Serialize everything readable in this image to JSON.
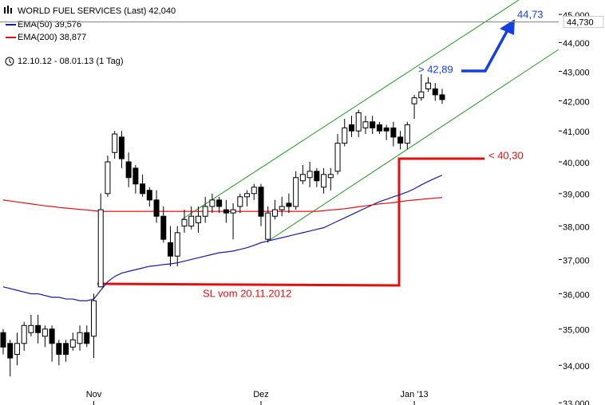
{
  "chart_data": {
    "type": "candlestick",
    "legend": [
      "WORLD FUEL SERVICES (Last) 42,040",
      "EMA(50) 39,576",
      "EMA(200) 38,877"
    ],
    "period": "12.10.12 - 08.01.13 (1 Tag)",
    "categories": [
      null,
      null,
      null,
      null,
      null,
      null,
      null,
      null,
      null,
      null,
      null,
      null,
      null,
      "Nov",
      null,
      null,
      null,
      null,
      null,
      null,
      null,
      null,
      null,
      null,
      null,
      null,
      null,
      null,
      null,
      null,
      null,
      null,
      null,
      null,
      null,
      null,
      null,
      "Dez",
      null,
      null,
      null,
      null,
      null,
      null,
      null,
      null,
      null,
      null,
      null,
      null,
      null,
      null,
      null,
      null,
      null,
      null,
      null,
      null,
      null,
      "Jan '13",
      null,
      null,
      null,
      null
    ],
    "open": [
      34.9,
      34.6,
      34.3,
      34.6,
      34.9,
      35.1,
      34.8,
      35.0,
      34.6,
      34.6,
      34.5,
      34.6,
      34.9,
      34.8,
      36.2,
      39.0,
      40.3,
      40.8,
      40.0,
      39.8,
      39.3,
      39.1,
      38.8,
      38.3,
      37.5,
      37.1,
      38.0,
      38.0,
      38.1,
      38.3,
      38.6,
      38.8,
      38.5,
      38.4,
      38.6,
      38.9,
      39.0,
      39.2,
      37.6,
      38.3,
      38.5,
      38.7,
      38.6,
      39.4,
      39.5,
      39.7,
      39.2,
      39.5,
      39.7,
      40.6,
      41.2,
      41.0,
      41.1,
      41.3,
      41.2,
      41.1,
      41.1,
      40.8,
      40.6,
      41.9,
      42.1,
      42.4,
      42.4,
      42.2
    ],
    "high": [
      35.0,
      34.7,
      34.9,
      35.2,
      35.4,
      35.4,
      35.1,
      35.1,
      34.7,
      34.7,
      34.9,
      35.1,
      35.1,
      36.0,
      39.0,
      40.2,
      41.0,
      41.0,
      40.3,
      39.9,
      39.6,
      39.2,
      39.1,
      38.6,
      38.0,
      38.0,
      38.5,
      38.6,
      38.6,
      38.9,
      39.0,
      38.9,
      38.8,
      38.7,
      39.0,
      39.1,
      39.3,
      39.3,
      38.6,
      38.8,
      38.9,
      39.0,
      39.7,
      39.9,
      40.0,
      39.8,
      39.8,
      39.8,
      40.9,
      41.4,
      41.5,
      41.7,
      41.5,
      41.5,
      41.3,
      41.2,
      41.3,
      41.0,
      41.3,
      42.2,
      42.9,
      42.8,
      42.6,
      42.4
    ],
    "low": [
      34.3,
      33.7,
      34.0,
      34.4,
      34.8,
      34.6,
      34.5,
      34.1,
      34.0,
      34.1,
      34.4,
      34.4,
      34.5,
      34.2,
      36.2,
      38.9,
      40.1,
      39.8,
      39.2,
      39.0,
      38.9,
      38.6,
      38.1,
      37.5,
      36.8,
      36.8,
      37.8,
      37.9,
      37.8,
      38.1,
      38.4,
      38.4,
      38.1,
      37.6,
      38.4,
      38.6,
      38.8,
      38.0,
      37.5,
      38.2,
      38.3,
      38.4,
      38.5,
      39.3,
      39.2,
      39.2,
      39.0,
      39.1,
      39.6,
      40.5,
      40.8,
      40.8,
      40.9,
      40.9,
      40.9,
      40.7,
      40.5,
      40.4,
      40.4,
      41.4,
      42.0,
      42.3,
      42.0,
      41.9
    ],
    "close": [
      34.5,
      34.2,
      34.6,
      35.1,
      35.1,
      34.9,
      35.0,
      34.6,
      34.3,
      34.3,
      34.7,
      34.9,
      34.6,
      35.8,
      38.5,
      40.0,
      40.9,
      40.1,
      39.5,
      39.3,
      39.0,
      38.8,
      38.3,
      37.6,
      37.1,
      37.8,
      38.2,
      38.3,
      38.3,
      38.6,
      38.8,
      38.6,
      38.4,
      38.5,
      38.9,
      39.0,
      39.2,
      38.3,
      38.4,
      38.5,
      38.6,
      38.6,
      39.5,
      39.6,
      39.7,
      39.4,
      39.6,
      39.6,
      40.6,
      41.1,
      41.0,
      41.6,
      41.3,
      41.1,
      41.0,
      41.0,
      40.8,
      40.6,
      41.2,
      42.1,
      42.3,
      42.6,
      42.2,
      42.04
    ],
    "up_color": "#ffffff",
    "down_color": "#000000",
    "series": [
      {
        "name": "EMA(50)",
        "color": "#1a1aa0",
        "values": [
          36.2,
          36.15,
          36.1,
          36.05,
          36.0,
          36.0,
          35.95,
          35.9,
          35.9,
          35.85,
          35.85,
          35.8,
          35.8,
          35.85,
          36.1,
          36.35,
          36.5,
          36.6,
          36.65,
          36.7,
          36.75,
          36.8,
          36.82,
          36.85,
          36.87,
          36.9,
          36.95,
          37.0,
          37.05,
          37.1,
          37.15,
          37.2,
          37.22,
          37.25,
          37.3,
          37.35,
          37.42,
          37.5,
          37.55,
          37.6,
          37.65,
          37.7,
          37.75,
          37.8,
          37.85,
          37.9,
          37.95,
          38.05,
          38.15,
          38.25,
          38.35,
          38.45,
          38.55,
          38.65,
          38.75,
          38.82,
          38.9,
          38.97,
          39.05,
          39.15,
          39.27,
          39.38,
          39.48,
          39.576
        ]
      },
      {
        "name": "EMA(200)",
        "color": "#e01010",
        "values": [
          38.8,
          38.77,
          38.74,
          38.71,
          38.68,
          38.65,
          38.62,
          38.6,
          38.57,
          38.55,
          38.53,
          38.51,
          38.49,
          38.47,
          38.45,
          38.45,
          38.45,
          38.45,
          38.45,
          38.45,
          38.45,
          38.45,
          38.45,
          38.45,
          38.45,
          38.45,
          38.45,
          38.45,
          38.45,
          38.45,
          38.45,
          38.45,
          38.45,
          38.45,
          38.45,
          38.45,
          38.45,
          38.45,
          38.45,
          38.45,
          38.45,
          38.45,
          38.45,
          38.45,
          38.45,
          38.45,
          38.47,
          38.49,
          38.51,
          38.53,
          38.56,
          38.59,
          38.62,
          38.65,
          38.68,
          38.7,
          38.72,
          38.75,
          38.78,
          38.8,
          38.82,
          38.84,
          38.86,
          38.877
        ]
      }
    ],
    "log_scale": true,
    "ylim": [
      32.94,
      45.52
    ],
    "yticks": [
      {
        "value": 33,
        "label": "33,000"
      },
      {
        "value": 34,
        "label": "34,000"
      },
      {
        "value": 35,
        "label": "35,000"
      },
      {
        "value": 36,
        "label": "36,000"
      },
      {
        "value": 37,
        "label": "37,000"
      },
      {
        "value": 38,
        "label": "38,000"
      },
      {
        "value": 39,
        "label": "39,000"
      },
      {
        "value": 40,
        "label": "40,000"
      },
      {
        "value": 41,
        "label": "41,000"
      },
      {
        "value": 42,
        "label": "42,000"
      },
      {
        "value": 43,
        "label": "43,000"
      },
      {
        "value": 44,
        "label": "44,000"
      },
      {
        "value": 45,
        "label": "45,000"
      }
    ],
    "reference_line": {
      "value": 44.73,
      "label": "44,730"
    },
    "annotations": [
      "> 42,89",
      "44,73",
      "< 40,30",
      "SL vom 20.11.2012"
    ]
  }
}
